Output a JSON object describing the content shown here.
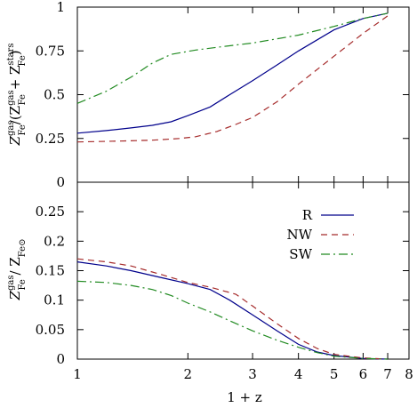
{
  "chart_data": [
    {
      "type": "line",
      "title": "",
      "xlabel": "1 + z",
      "ylabel": "Z_Fe^gas / (Z_Fe^gas + Z_Fe^stars)",
      "xscale": "log",
      "xlim": [
        1,
        8
      ],
      "ylim": [
        0,
        1
      ],
      "yticks": [
        0,
        0.25,
        0.5,
        0.75,
        1
      ],
      "ytick_labels": [
        "0",
        "0.25",
        "0.5",
        "0.75",
        "1"
      ],
      "series": [
        {
          "name": "R",
          "color": "#00008b",
          "dash": "",
          "x": [
            1.0,
            1.2,
            1.4,
            1.6,
            1.8,
            2.0,
            2.3,
            2.6,
            3.0,
            3.5,
            4.0,
            5.0,
            6.0,
            7.0
          ],
          "y": [
            0.28,
            0.295,
            0.31,
            0.325,
            0.345,
            0.38,
            0.43,
            0.5,
            0.58,
            0.67,
            0.75,
            0.87,
            0.935,
            0.965
          ]
        },
        {
          "name": "NW",
          "color": "#a52a2a",
          "dash": "7,5",
          "x": [
            1.0,
            1.3,
            1.6,
            1.9,
            2.1,
            2.4,
            2.7,
            3.0,
            3.5,
            4.0,
            5.0,
            6.0,
            7.0
          ],
          "y": [
            0.23,
            0.235,
            0.24,
            0.25,
            0.26,
            0.29,
            0.33,
            0.37,
            0.46,
            0.56,
            0.72,
            0.85,
            0.95
          ]
        },
        {
          "name": "SW",
          "color": "#228b22",
          "dash": "10,4,2,4",
          "x": [
            1.0,
            1.2,
            1.4,
            1.6,
            1.8,
            2.1,
            2.5,
            3.0,
            4.0,
            5.0,
            6.0,
            7.0
          ],
          "y": [
            0.45,
            0.52,
            0.6,
            0.68,
            0.73,
            0.755,
            0.775,
            0.795,
            0.84,
            0.89,
            0.935,
            0.965
          ]
        }
      ]
    },
    {
      "type": "line",
      "title": "",
      "xlabel": "1 + z",
      "ylabel": "Z_Fe^gas / Z_Fe⊙",
      "xscale": "log",
      "xlim": [
        1,
        8
      ],
      "ylim": [
        0,
        0.3
      ],
      "yticks": [
        0,
        0.05,
        0.1,
        0.15,
        0.2,
        0.25
      ],
      "ytick_labels": [
        "0",
        "0.05",
        "0.1",
        "0.15",
        "0.2",
        "0.25"
      ],
      "xticks": [
        1,
        2,
        3,
        4,
        5,
        6,
        7,
        8
      ],
      "xtick_labels": [
        "1",
        "2",
        "3",
        "4",
        "5",
        "6",
        "7",
        "8"
      ],
      "legend": "upper-right",
      "series": [
        {
          "name": "R",
          "color": "#00008b",
          "dash": "",
          "x": [
            1.0,
            1.2,
            1.4,
            1.7,
            2.0,
            2.3,
            2.6,
            3.0,
            3.5,
            4.0,
            4.5,
            5.0,
            6.0,
            7.0
          ],
          "y": [
            0.165,
            0.158,
            0.15,
            0.138,
            0.128,
            0.118,
            0.1,
            0.075,
            0.048,
            0.025,
            0.012,
            0.006,
            0.001,
            0.0
          ]
        },
        {
          "name": "NW",
          "color": "#a52a2a",
          "dash": "7,5",
          "x": [
            1.0,
            1.2,
            1.4,
            1.7,
            2.0,
            2.3,
            2.7,
            3.0,
            3.5,
            4.0,
            4.5,
            5.0,
            6.0,
            7.0
          ],
          "y": [
            0.17,
            0.165,
            0.158,
            0.143,
            0.13,
            0.122,
            0.11,
            0.09,
            0.06,
            0.035,
            0.018,
            0.008,
            0.002,
            0.0
          ]
        },
        {
          "name": "SW",
          "color": "#228b22",
          "dash": "10,4,2,4",
          "x": [
            1.0,
            1.2,
            1.4,
            1.6,
            1.8,
            2.0,
            2.3,
            2.6,
            3.0,
            3.5,
            4.0,
            4.5,
            5.0,
            6.0,
            7.0
          ],
          "y": [
            0.132,
            0.13,
            0.125,
            0.118,
            0.108,
            0.095,
            0.08,
            0.065,
            0.048,
            0.032,
            0.02,
            0.011,
            0.005,
            0.001,
            0.0
          ]
        }
      ]
    }
  ]
}
